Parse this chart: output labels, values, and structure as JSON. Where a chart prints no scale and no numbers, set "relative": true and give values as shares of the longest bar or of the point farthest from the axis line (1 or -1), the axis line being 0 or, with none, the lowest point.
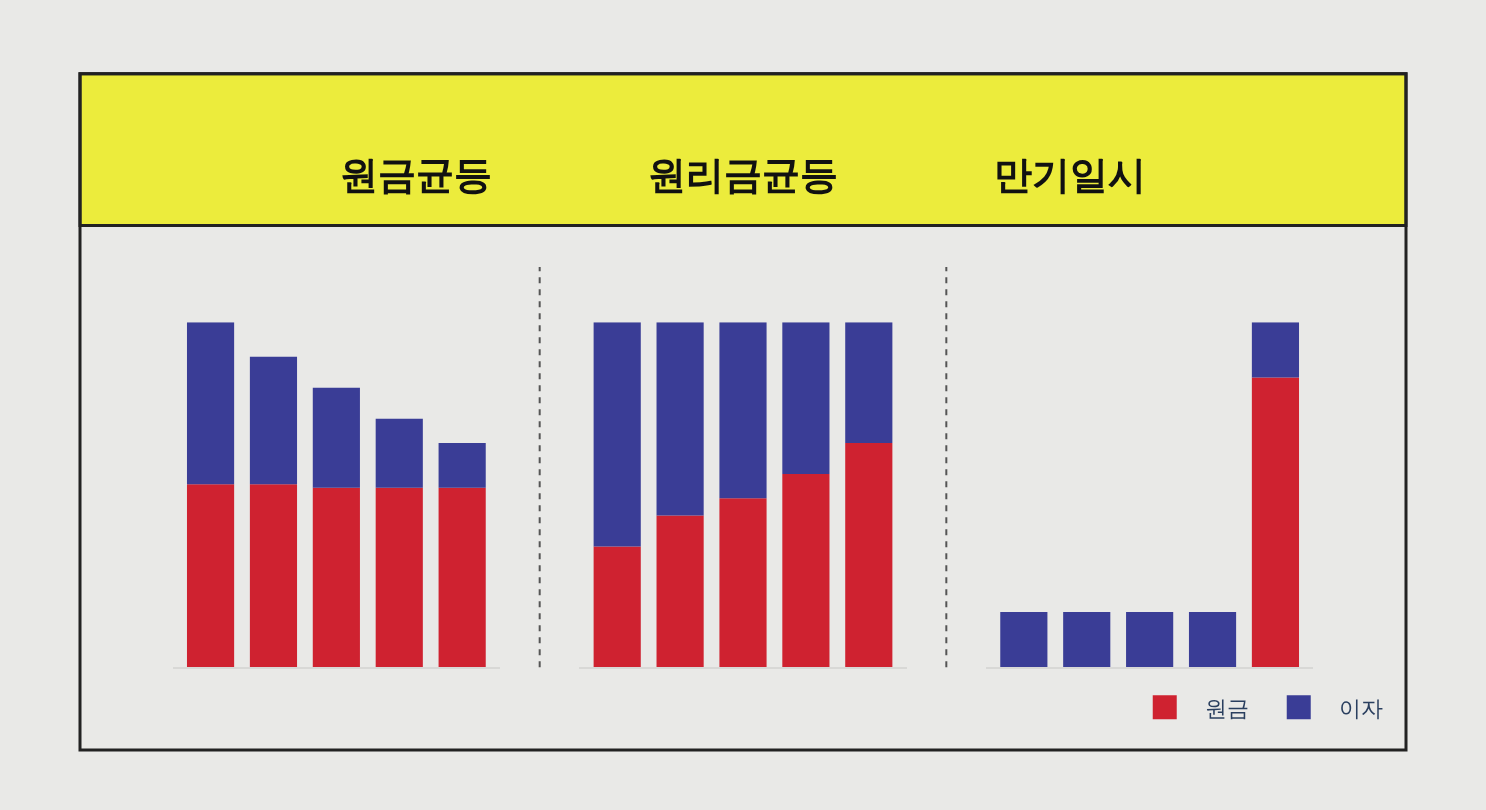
{
  "chart_data": [
    {
      "type": "bar",
      "title": "원금균등",
      "relative": true,
      "stacked": true,
      "categories": [
        null,
        null,
        null,
        null,
        null
      ],
      "series": [
        {
          "color": "#cf2230",
          "values": [
            0.53,
            0.53,
            0.52,
            0.52,
            0.52
          ]
        },
        {
          "color": "#3a3d96",
          "values": [
            0.47,
            0.37,
            0.29,
            0.2,
            0.13
          ]
        }
      ]
    },
    {
      "type": "bar",
      "title": "원리금균등",
      "relative": true,
      "stacked": true,
      "categories": [
        null,
        null,
        null,
        null,
        null
      ],
      "series": [
        {
          "color": "#cf2230",
          "values": [
            0.35,
            0.44,
            0.49,
            0.56,
            0.65
          ]
        },
        {
          "color": "#3a3d96",
          "values": [
            0.65,
            0.56,
            0.51,
            0.44,
            0.35
          ]
        }
      ]
    },
    {
      "type": "bar",
      "title": "만기일시",
      "relative": true,
      "stacked": true,
      "legend": "bottom right",
      "categories": [
        null,
        null,
        null,
        null,
        null
      ],
      "series": [
        {
          "name": "원금",
          "color": "#cf2230",
          "values": [
            null,
            null,
            null,
            null,
            0.84
          ]
        },
        {
          "name": "이자",
          "color": "#3a3d96",
          "values": [
            0.16,
            0.16,
            0.16,
            0.16,
            0.16
          ]
        }
      ]
    }
  ]
}
